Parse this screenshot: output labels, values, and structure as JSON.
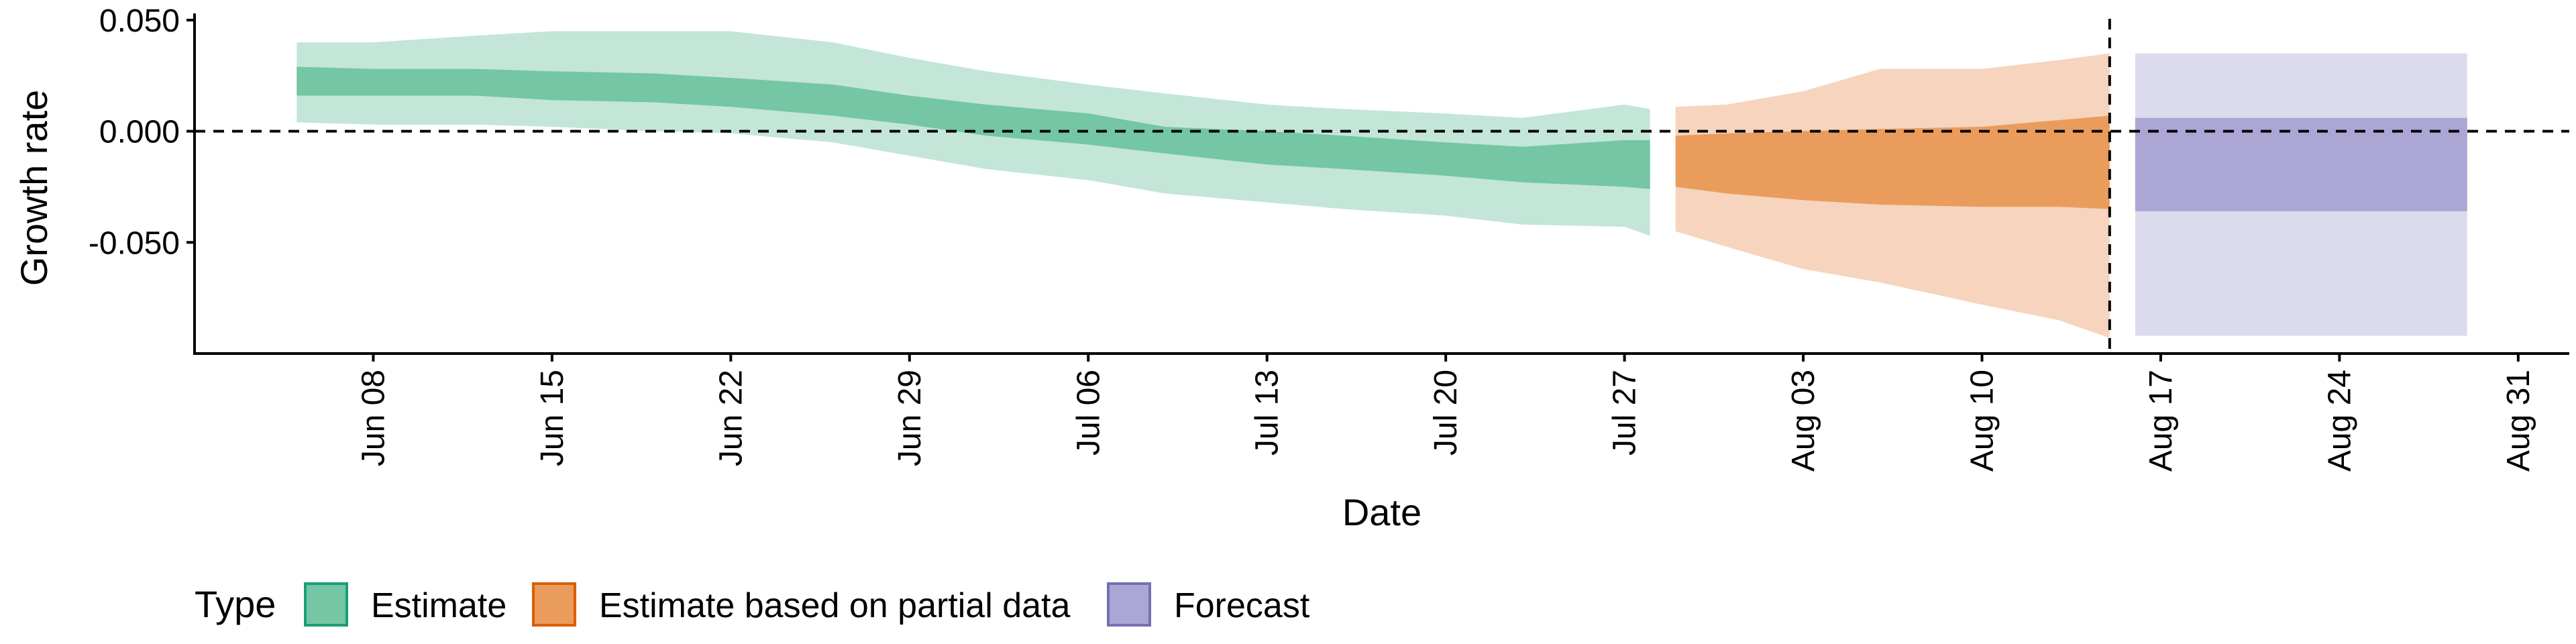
{
  "chart_data": {
    "type": "area",
    "xlabel": "Date",
    "ylabel": "Growth rate",
    "x_ticks": [
      "2020-06-08",
      "2020-06-15",
      "2020-06-22",
      "2020-06-29",
      "2020-07-06",
      "2020-07-13",
      "2020-07-20",
      "2020-07-27",
      "2020-08-03",
      "2020-08-10",
      "2020-08-17",
      "2020-08-24",
      "2020-08-31"
    ],
    "x_tick_labels": [
      "Jun 08",
      "Jun 15",
      "Jun 22",
      "Jun 29",
      "Jul 06",
      "Jul 13",
      "Jul 20",
      "Jul 27",
      "Aug 03",
      "Aug 10",
      "Aug 17",
      "Aug 24",
      "Aug 31"
    ],
    "xlim": [
      "2020-06-01",
      "2020-09-02"
    ],
    "y_ticks": [
      0.05,
      0,
      -0.05
    ],
    "y_tick_labels": [
      "0.050",
      "0.000",
      "-0.050"
    ],
    "ylim": [
      -0.1,
      0.053
    ],
    "reference_lines": {
      "horizontal_y": 0,
      "vertical_x": "2020-08-15"
    },
    "grid": false,
    "legend": {
      "title": "Type",
      "position": "bottom-left",
      "entries": [
        {
          "label": "Estimate",
          "fill": "#74c6a5",
          "border": "#1b9e77"
        },
        {
          "label": "Estimate based on partial data",
          "fill": "#e99c5c",
          "border": "#d95f02"
        },
        {
          "label": "Forecast",
          "fill": "#aba6d3",
          "border": "#7570b3"
        }
      ]
    },
    "series": [
      {
        "name": "Estimate",
        "color_inner": "#74c6a5",
        "color_outer": "#c3e6d9",
        "x": [
          "2020-06-05",
          "2020-06-08",
          "2020-06-12",
          "2020-06-15",
          "2020-06-19",
          "2020-06-22",
          "2020-06-26",
          "2020-06-29",
          "2020-07-02",
          "2020-07-06",
          "2020-07-09",
          "2020-07-13",
          "2020-07-16",
          "2020-07-20",
          "2020-07-23",
          "2020-07-27",
          "2020-07-28"
        ],
        "inner_upper": [
          0.029,
          0.028,
          0.028,
          0.027,
          0.026,
          0.024,
          0.021,
          0.016,
          0.012,
          0.008,
          0.002,
          0.0,
          -0.002,
          -0.005,
          -0.007,
          -0.004,
          -0.004
        ],
        "inner_lower": [
          0.016,
          0.016,
          0.016,
          0.014,
          0.013,
          0.011,
          0.007,
          0.003,
          -0.002,
          -0.006,
          -0.01,
          -0.015,
          -0.017,
          -0.02,
          -0.023,
          -0.025,
          -0.026
        ],
        "outer_upper": [
          0.04,
          0.04,
          0.043,
          0.045,
          0.045,
          0.045,
          0.04,
          0.033,
          0.027,
          0.021,
          0.017,
          0.012,
          0.01,
          0.008,
          0.006,
          0.012,
          0.01
        ],
        "outer_lower": [
          0.004,
          0.003,
          0.003,
          0.002,
          0.0,
          -0.001,
          -0.005,
          -0.011,
          -0.017,
          -0.022,
          -0.028,
          -0.032,
          -0.035,
          -0.038,
          -0.042,
          -0.043,
          -0.047
        ]
      },
      {
        "name": "Estimate based on partial data",
        "color_inner": "#e99c5c",
        "color_outer": "#f6d4bd",
        "x": [
          "2020-07-29",
          "2020-07-31",
          "2020-08-03",
          "2020-08-06",
          "2020-08-10",
          "2020-08-13",
          "2020-08-15"
        ],
        "inner_upper": [
          -0.002,
          -0.001,
          0.0,
          0.001,
          0.002,
          0.005,
          0.007
        ],
        "inner_lower": [
          -0.025,
          -0.028,
          -0.031,
          -0.033,
          -0.034,
          -0.034,
          -0.035
        ],
        "outer_upper": [
          0.011,
          0.012,
          0.018,
          0.028,
          0.028,
          0.032,
          0.035
        ],
        "outer_lower": [
          -0.045,
          -0.052,
          -0.062,
          -0.068,
          -0.078,
          -0.085,
          -0.093
        ]
      },
      {
        "name": "Forecast",
        "color_inner": "#aba6d3",
        "color_outer": "#dcdaed",
        "x": [
          "2020-08-16",
          "2020-08-29"
        ],
        "inner_upper": [
          0.006,
          0.006
        ],
        "inner_lower": [
          -0.036,
          -0.036
        ],
        "outer_upper": [
          0.035,
          0.035
        ],
        "outer_lower": [
          -0.092,
          -0.092
        ]
      }
    ]
  }
}
